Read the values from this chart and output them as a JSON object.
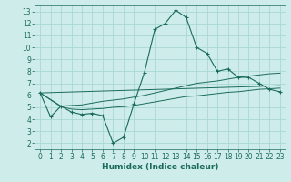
{
  "xlabel": "Humidex (Indice chaleur)",
  "xlim": [
    -0.5,
    23.5
  ],
  "ylim": [
    1.5,
    13.5
  ],
  "xticks": [
    0,
    1,
    2,
    3,
    4,
    5,
    6,
    7,
    8,
    9,
    10,
    11,
    12,
    13,
    14,
    15,
    16,
    17,
    18,
    19,
    20,
    21,
    22,
    23
  ],
  "yticks": [
    2,
    3,
    4,
    5,
    6,
    7,
    8,
    9,
    10,
    11,
    12,
    13
  ],
  "background_color": "#ceecea",
  "grid_color": "#a8d8d4",
  "line_color": "#1a6b5a",
  "line1_x": [
    0,
    1,
    2,
    3,
    4,
    5,
    6,
    7,
    8,
    9,
    10,
    11,
    12,
    13,
    14,
    15,
    16,
    17,
    18,
    19,
    20,
    21,
    22,
    23
  ],
  "line1_y": [
    6.2,
    4.2,
    5.1,
    4.6,
    4.4,
    4.5,
    4.3,
    2.0,
    2.5,
    5.3,
    7.9,
    11.5,
    12.0,
    13.1,
    12.5,
    10.0,
    9.5,
    8.0,
    8.2,
    7.5,
    7.5,
    7.0,
    6.5,
    6.3
  ],
  "line2_x": [
    0,
    2,
    4,
    5,
    6,
    7,
    8,
    9,
    10,
    11,
    12,
    13,
    14,
    15,
    16,
    17,
    18,
    19,
    20,
    21,
    22,
    23
  ],
  "line2_y": [
    6.2,
    5.1,
    5.2,
    5.35,
    5.5,
    5.6,
    5.7,
    5.85,
    6.0,
    6.2,
    6.4,
    6.6,
    6.8,
    7.0,
    7.1,
    7.2,
    7.35,
    7.5,
    7.6,
    7.7,
    7.8,
    7.85
  ],
  "line3_x": [
    0,
    2,
    3,
    4,
    5,
    6,
    7,
    8,
    9,
    10,
    11,
    12,
    13,
    14,
    15,
    16,
    17,
    18,
    19,
    20,
    21,
    22,
    23
  ],
  "line3_y": [
    6.2,
    5.05,
    4.85,
    4.8,
    4.85,
    4.9,
    5.0,
    5.05,
    5.15,
    5.3,
    5.45,
    5.6,
    5.75,
    5.9,
    5.95,
    6.05,
    6.15,
    6.25,
    6.3,
    6.4,
    6.5,
    6.55,
    6.6
  ],
  "line4_x": [
    0,
    23
  ],
  "line4_y": [
    6.2,
    6.8
  ],
  "tick_fontsize": 5.5,
  "label_fontsize": 6.5
}
